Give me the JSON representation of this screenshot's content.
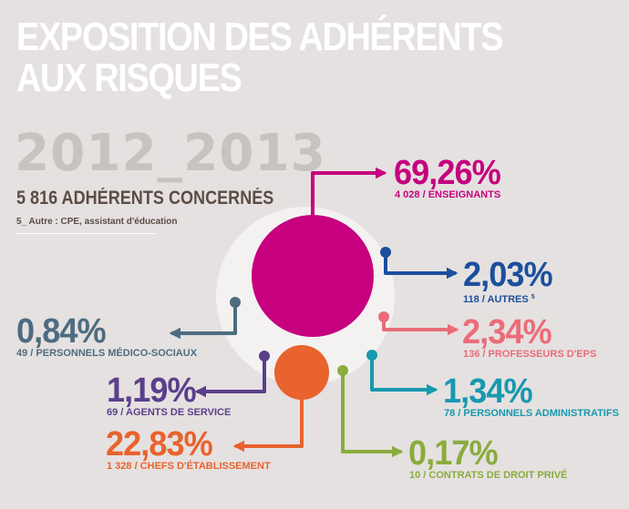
{
  "title": {
    "line1": "EXPOSITION DES ADHÉRENTS",
    "line2": "AUX RISQUES"
  },
  "period": "2012_2013",
  "members_concerned": "5 816 ADHÉRENTS CONCERNÉS",
  "footnote": "5_ Autre : CPE, assistant d'éducation",
  "colors": {
    "background": "#e5e1e0",
    "enseignants": "#c6007e",
    "autres": "#1c4f9c",
    "professeurs_eps": "#ea6c78",
    "personnels_administratifs": "#1699b0",
    "contrats_droit_prive": "#8aac3e",
    "chefs_etablissement": "#e8632d",
    "agents_service": "#5a3f8c",
    "medico_sociaux": "#4e6c80"
  },
  "chart_data": {
    "type": "bubble",
    "categories": [
      "ENSEIGNANTS",
      "AUTRES",
      "PROFESSEURS D'EPS",
      "PERSONNELS ADMINISTRATIFS",
      "CONTRATS DE DROIT PRIVÉ",
      "CHEFS D'ÉTABLISSEMENT",
      "AGENTS DE SERVICE",
      "PERSONNELS MÉDICO-SOCIAUX"
    ],
    "values": [
      69.26,
      2.03,
      2.34,
      1.34,
      0.17,
      22.83,
      1.19,
      0.84
    ],
    "counts": [
      4028,
      118,
      136,
      78,
      10,
      1328,
      69,
      49
    ],
    "labels": [
      {
        "id": "enseignants",
        "pct": "69,26%",
        "sub": "4 028 / ENSEIGNANTS",
        "sup": ""
      },
      {
        "id": "autres",
        "pct": "2,03%",
        "sub": "118 / AUTRES",
        "sup": "5"
      },
      {
        "id": "professeurs_eps",
        "pct": "2,34%",
        "sub": "136 / PROFESSEURS D'EPS",
        "sup": ""
      },
      {
        "id": "personnels_administratifs",
        "pct": "1,34%",
        "sub": "78 / PERSONNELS ADMINISTRATIFS",
        "sup": ""
      },
      {
        "id": "contrats_droit_prive",
        "pct": "0,17%",
        "sub": "10 / CONTRATS DE DROIT PRIVÉ",
        "sup": ""
      },
      {
        "id": "chefs_etablissement",
        "pct": "22,83%",
        "sub": "1 328 / CHEFS D'ÉTABLISSEMENT",
        "sup": ""
      },
      {
        "id": "agents_service",
        "pct": "1,19%",
        "sub": "69 / AGENTS DE SERVICE",
        "sup": ""
      },
      {
        "id": "medico_sociaux",
        "pct": "0,84%",
        "sub": "49  / PERSONNELS MÉDICO-SOCIAUX",
        "sup": ""
      }
    ]
  }
}
